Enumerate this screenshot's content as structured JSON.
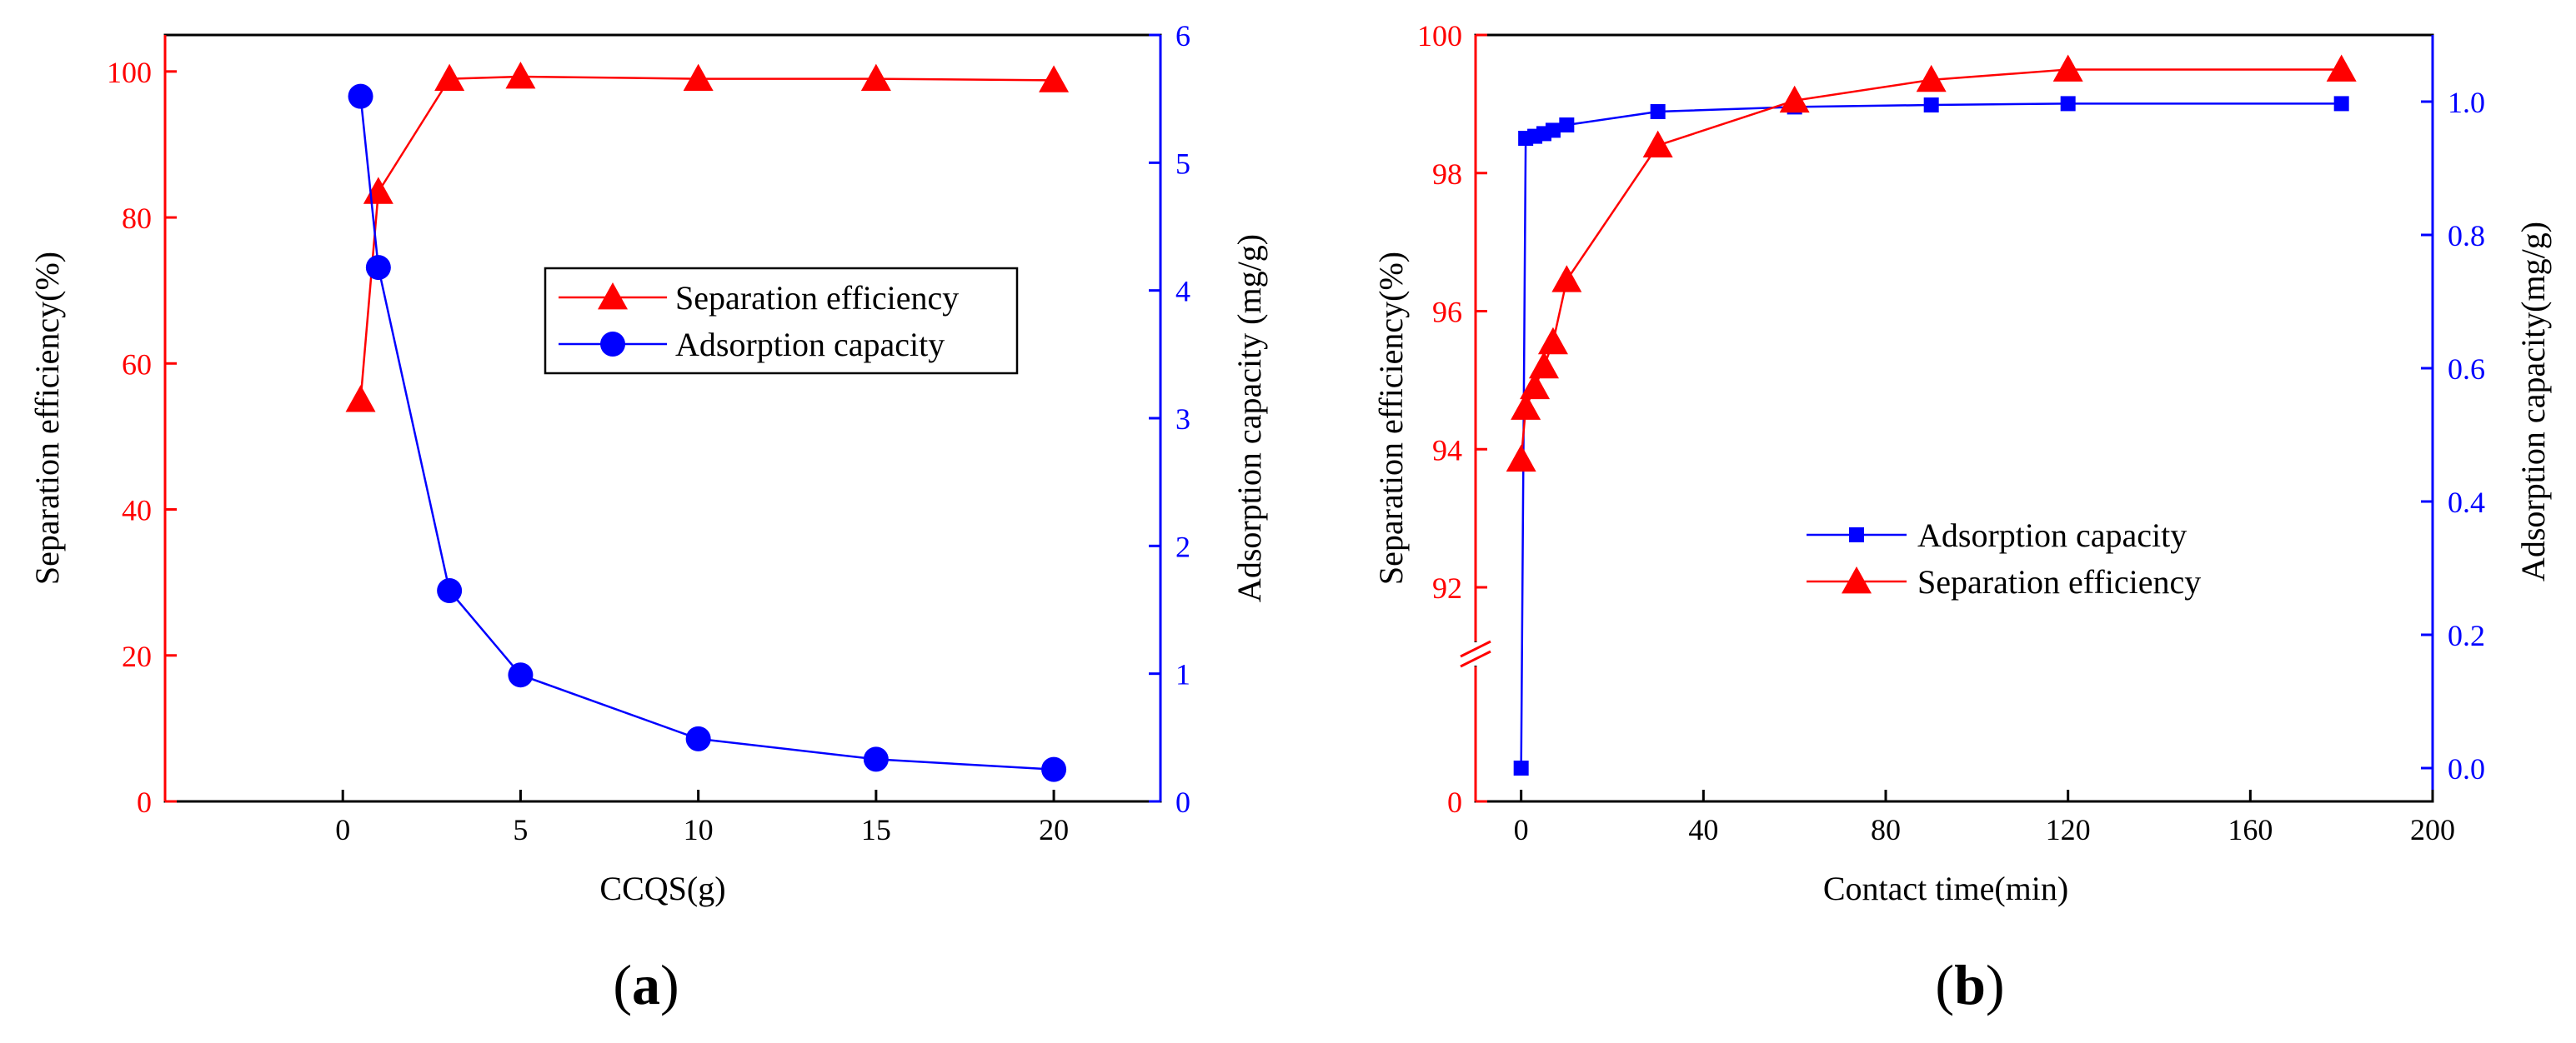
{
  "chart_data": [
    {
      "type": "line",
      "panel_label": "a",
      "xlabel": "CCQS(g)",
      "ylabel_left": "Separation efficiency(%)",
      "ylabel_right": "Adsorption capacity (mg/g)",
      "xlim": [
        -5,
        23
      ],
      "ylim_left": [
        0,
        105
      ],
      "ylim_right": [
        0,
        6
      ],
      "xticks": [
        0,
        5,
        10,
        15,
        20
      ],
      "yticks_left": [
        0,
        20,
        40,
        60,
        80,
        100
      ],
      "yticks_right": [
        0,
        1,
        2,
        3,
        4,
        5,
        6
      ],
      "legend_position": "center-right",
      "series": [
        {
          "name": "Separation efficiency",
          "axis": "left",
          "color": "#ff0000",
          "marker": "triangle",
          "x": [
            0.5,
            1,
            3,
            5,
            10,
            15,
            20
          ],
          "values": [
            55.0,
            83.5,
            99.0,
            99.3,
            99.0,
            99.0,
            98.8
          ]
        },
        {
          "name": "Adsorption capacity",
          "axis": "right",
          "color": "#0000ff",
          "marker": "circle",
          "x": [
            0.5,
            1,
            3,
            5,
            10,
            15,
            20
          ],
          "values": [
            5.52,
            4.18,
            1.65,
            0.99,
            0.49,
            0.33,
            0.25
          ]
        }
      ]
    },
    {
      "type": "line",
      "panel_label": "b",
      "xlabel": "Contact time(min)",
      "ylabel_left": "Separation efficiency(%)",
      "ylabel_right": "Adsorption capacity(mg/g)",
      "xlim": [
        -10,
        200
      ],
      "ylim_left": [
        0,
        100
      ],
      "ylim_right": [
        -0.05,
        1.1
      ],
      "xticks": [
        0,
        40,
        80,
        120,
        160,
        200
      ],
      "yticks_left": [
        0,
        92,
        94,
        96,
        98,
        100
      ],
      "yticks_right": [
        0.0,
        0.2,
        0.4,
        0.6,
        0.8,
        1.0
      ],
      "left_axis_break": true,
      "left_axis_break_note": "broken axis: 0, then 92 to 100",
      "legend_position": "center",
      "series": [
        {
          "name": "Adsorption capacity",
          "axis": "right",
          "color": "#0000ff",
          "marker": "square",
          "x": [
            0,
            1,
            3,
            5,
            7,
            10,
            30,
            60,
            90,
            120,
            180
          ],
          "values": [
            0.0,
            0.945,
            0.948,
            0.952,
            0.957,
            0.965,
            0.985,
            0.992,
            0.995,
            0.997,
            0.997
          ]
        },
        {
          "name": "Separation efficiency",
          "axis": "left",
          "color": "#ff0000",
          "marker": "triangle",
          "x": [
            0,
            1,
            3,
            5,
            7,
            10,
            30,
            60,
            90,
            120,
            180
          ],
          "values": [
            93.85,
            94.6,
            94.9,
            95.2,
            95.55,
            96.45,
            98.4,
            99.05,
            99.35,
            99.5,
            99.5
          ]
        }
      ]
    }
  ]
}
